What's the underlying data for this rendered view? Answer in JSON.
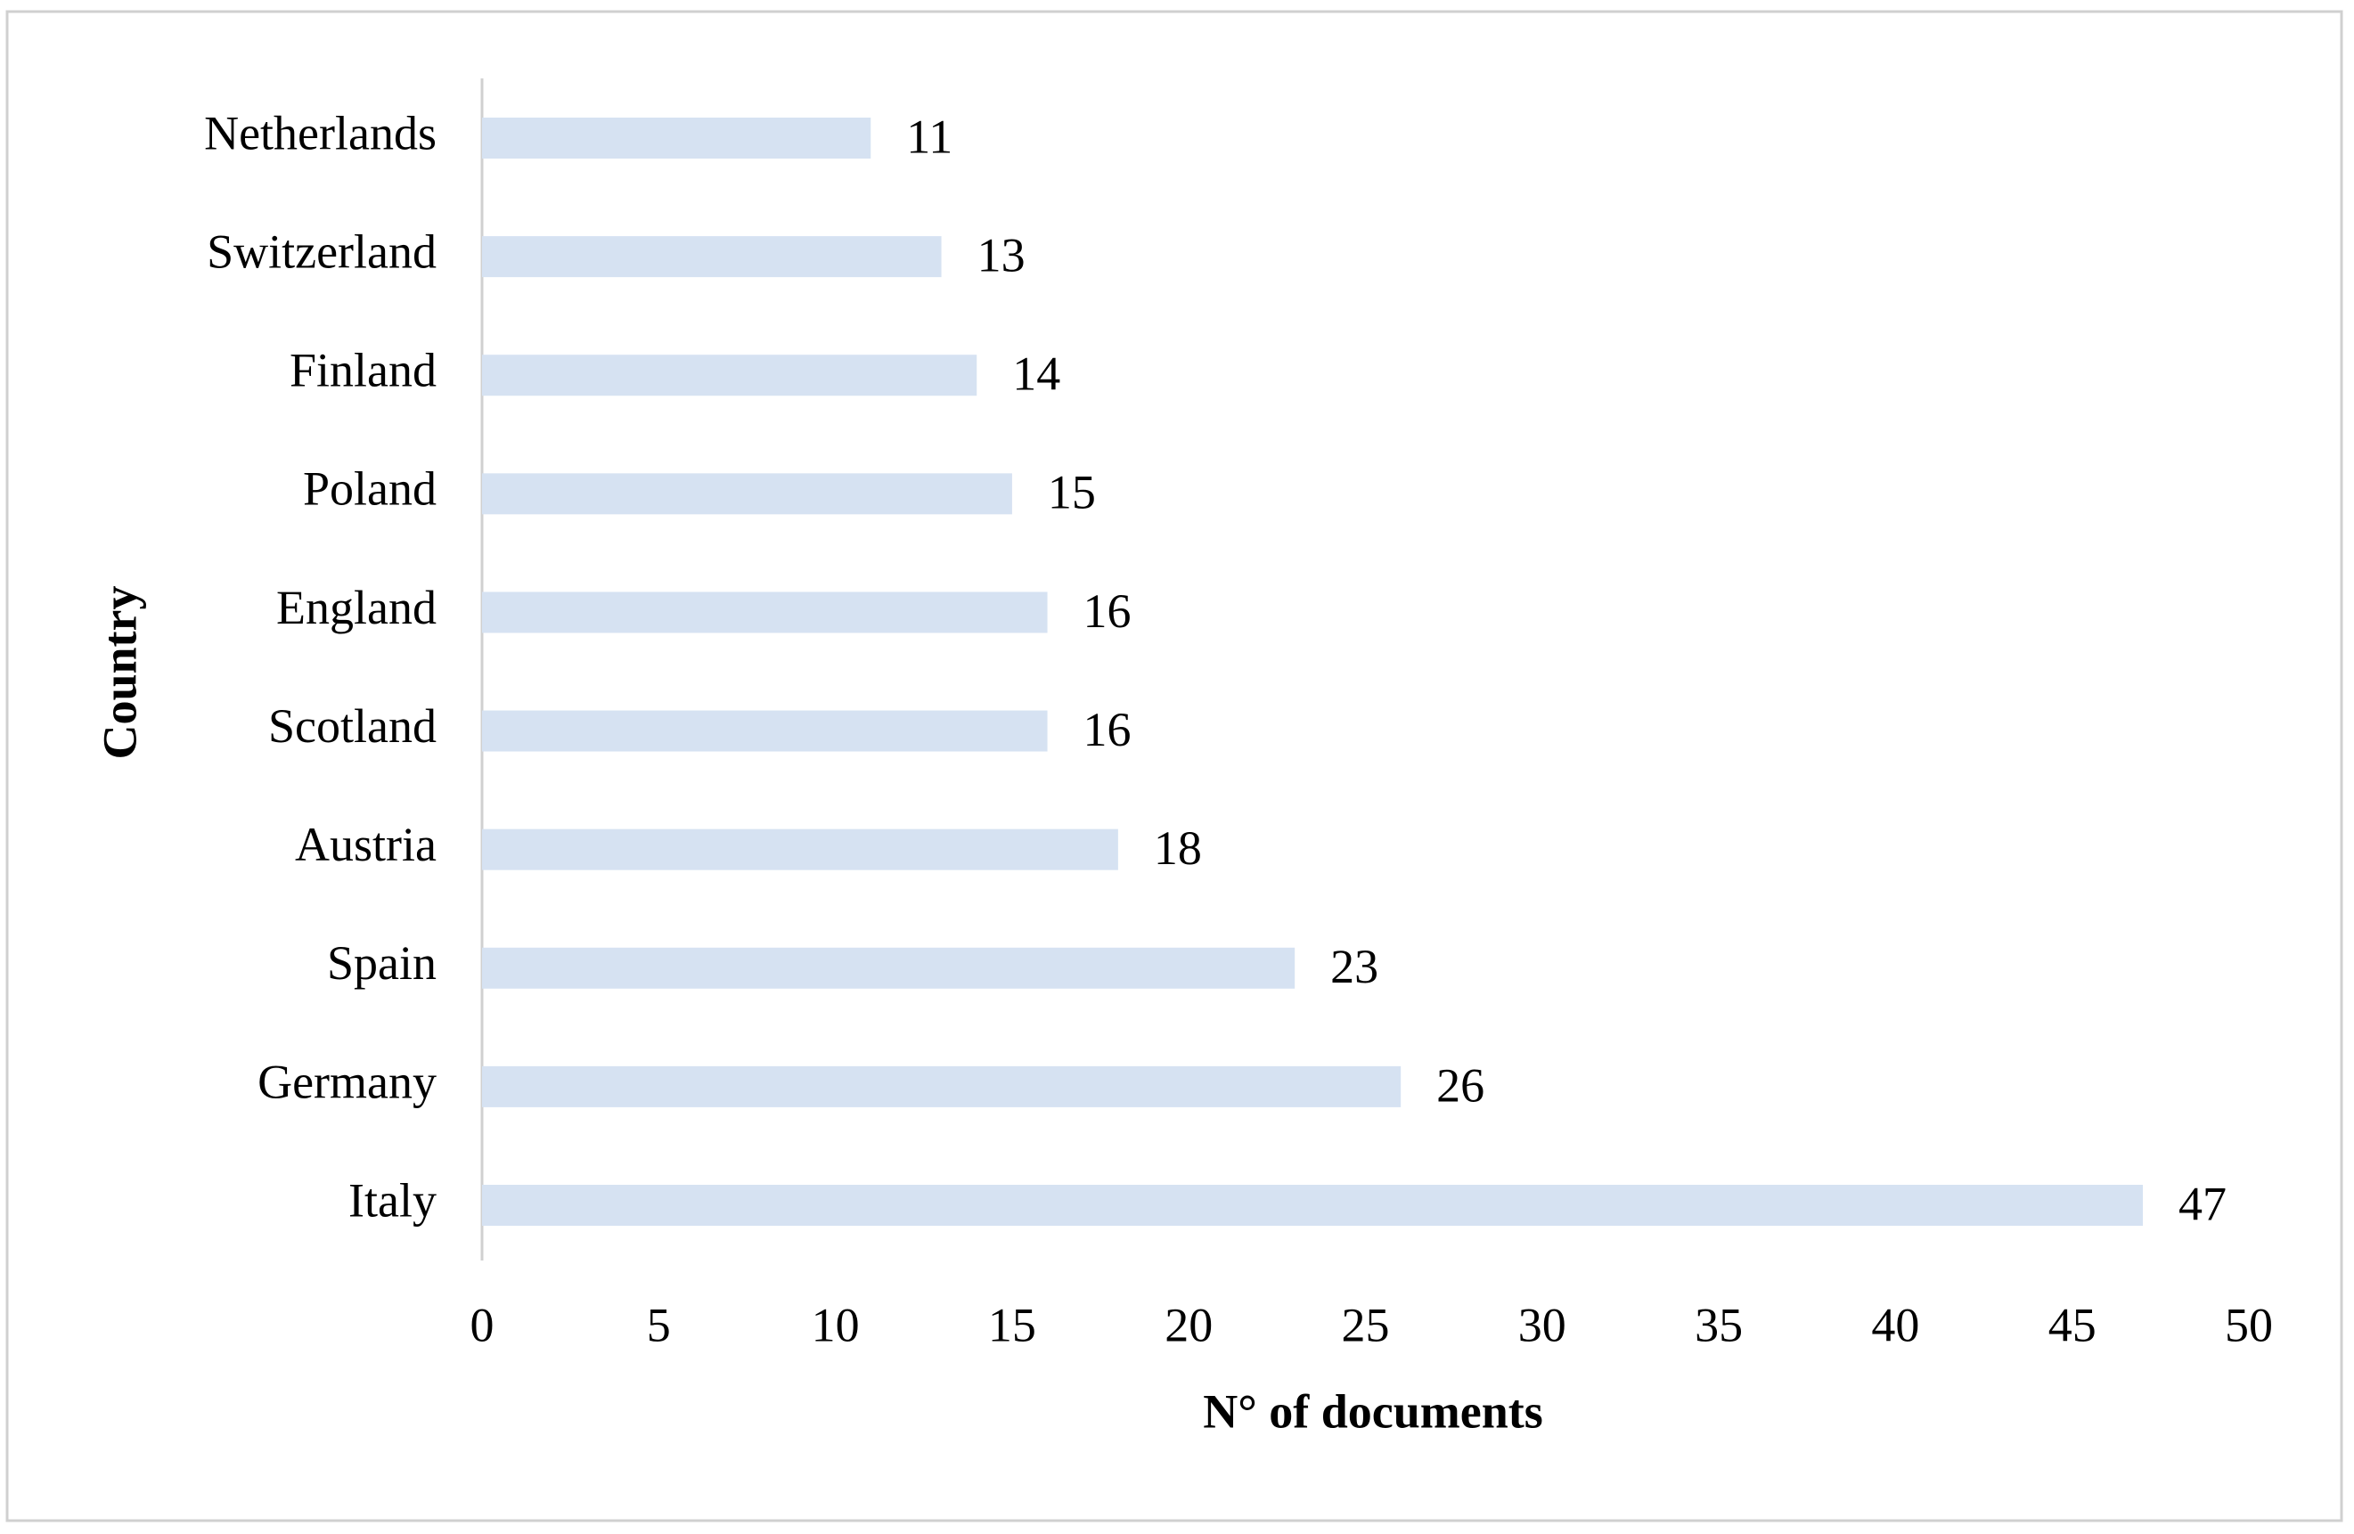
{
  "chart_data": {
    "type": "bar",
    "orientation": "horizontal",
    "categories": [
      "Netherlands",
      "Switzerland",
      "Finland",
      "Poland",
      "England",
      "Scotland",
      "Austria",
      "Spain",
      "Germany",
      "Italy"
    ],
    "values": [
      11,
      13,
      14,
      15,
      16,
      16,
      18,
      23,
      26,
      47
    ],
    "color": "#d6e2f2",
    "xlabel": "N° of documents",
    "ylabel": "Country",
    "xlim": [
      0,
      50
    ],
    "xticks": [
      0,
      5,
      10,
      15,
      20,
      25,
      30,
      35,
      40,
      45,
      50
    ],
    "grid": false
  }
}
